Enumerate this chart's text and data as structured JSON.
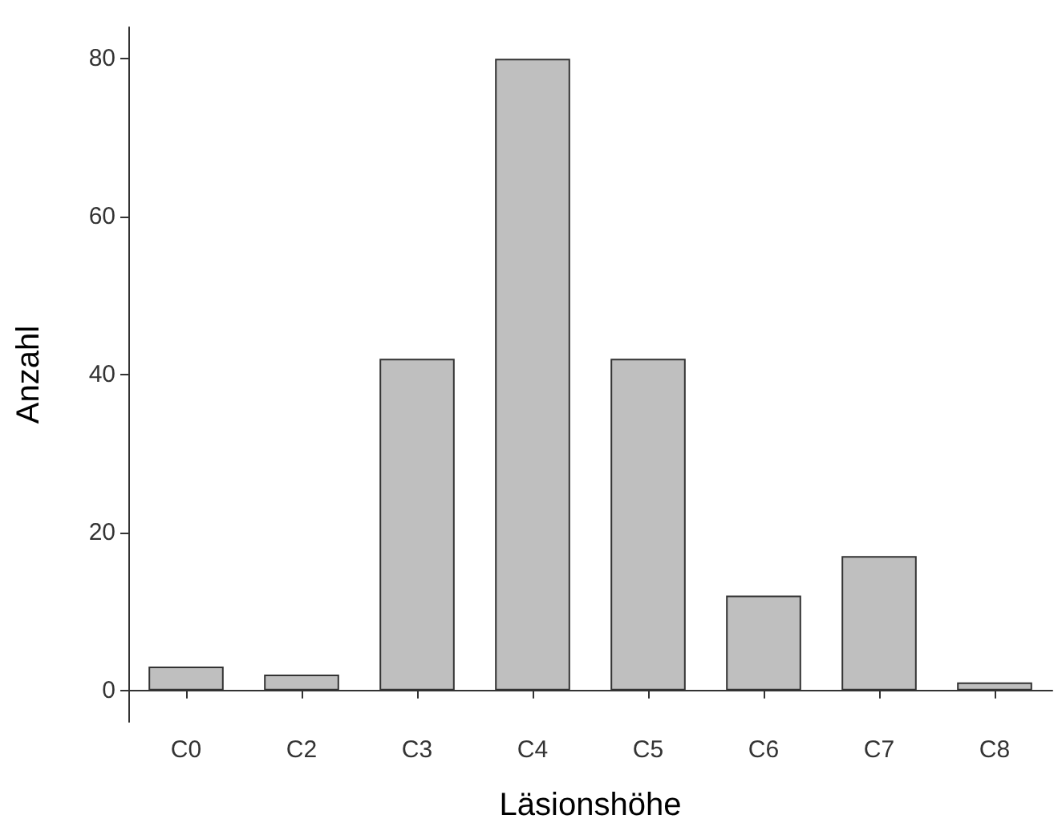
{
  "chart_data": {
    "type": "bar",
    "xlabel": "Läsionshöhe",
    "ylabel": "Anzahl",
    "categories": [
      "C0",
      "C2",
      "C3",
      "C4",
      "C5",
      "C6",
      "C7",
      "C8"
    ],
    "values": [
      3,
      2,
      42,
      80,
      42,
      12,
      17,
      1
    ],
    "color": "#bfbfbf",
    "ylim": [
      -4,
      84
    ],
    "yticks": [
      0,
      20,
      40,
      60,
      80
    ],
    "grid": false
  }
}
